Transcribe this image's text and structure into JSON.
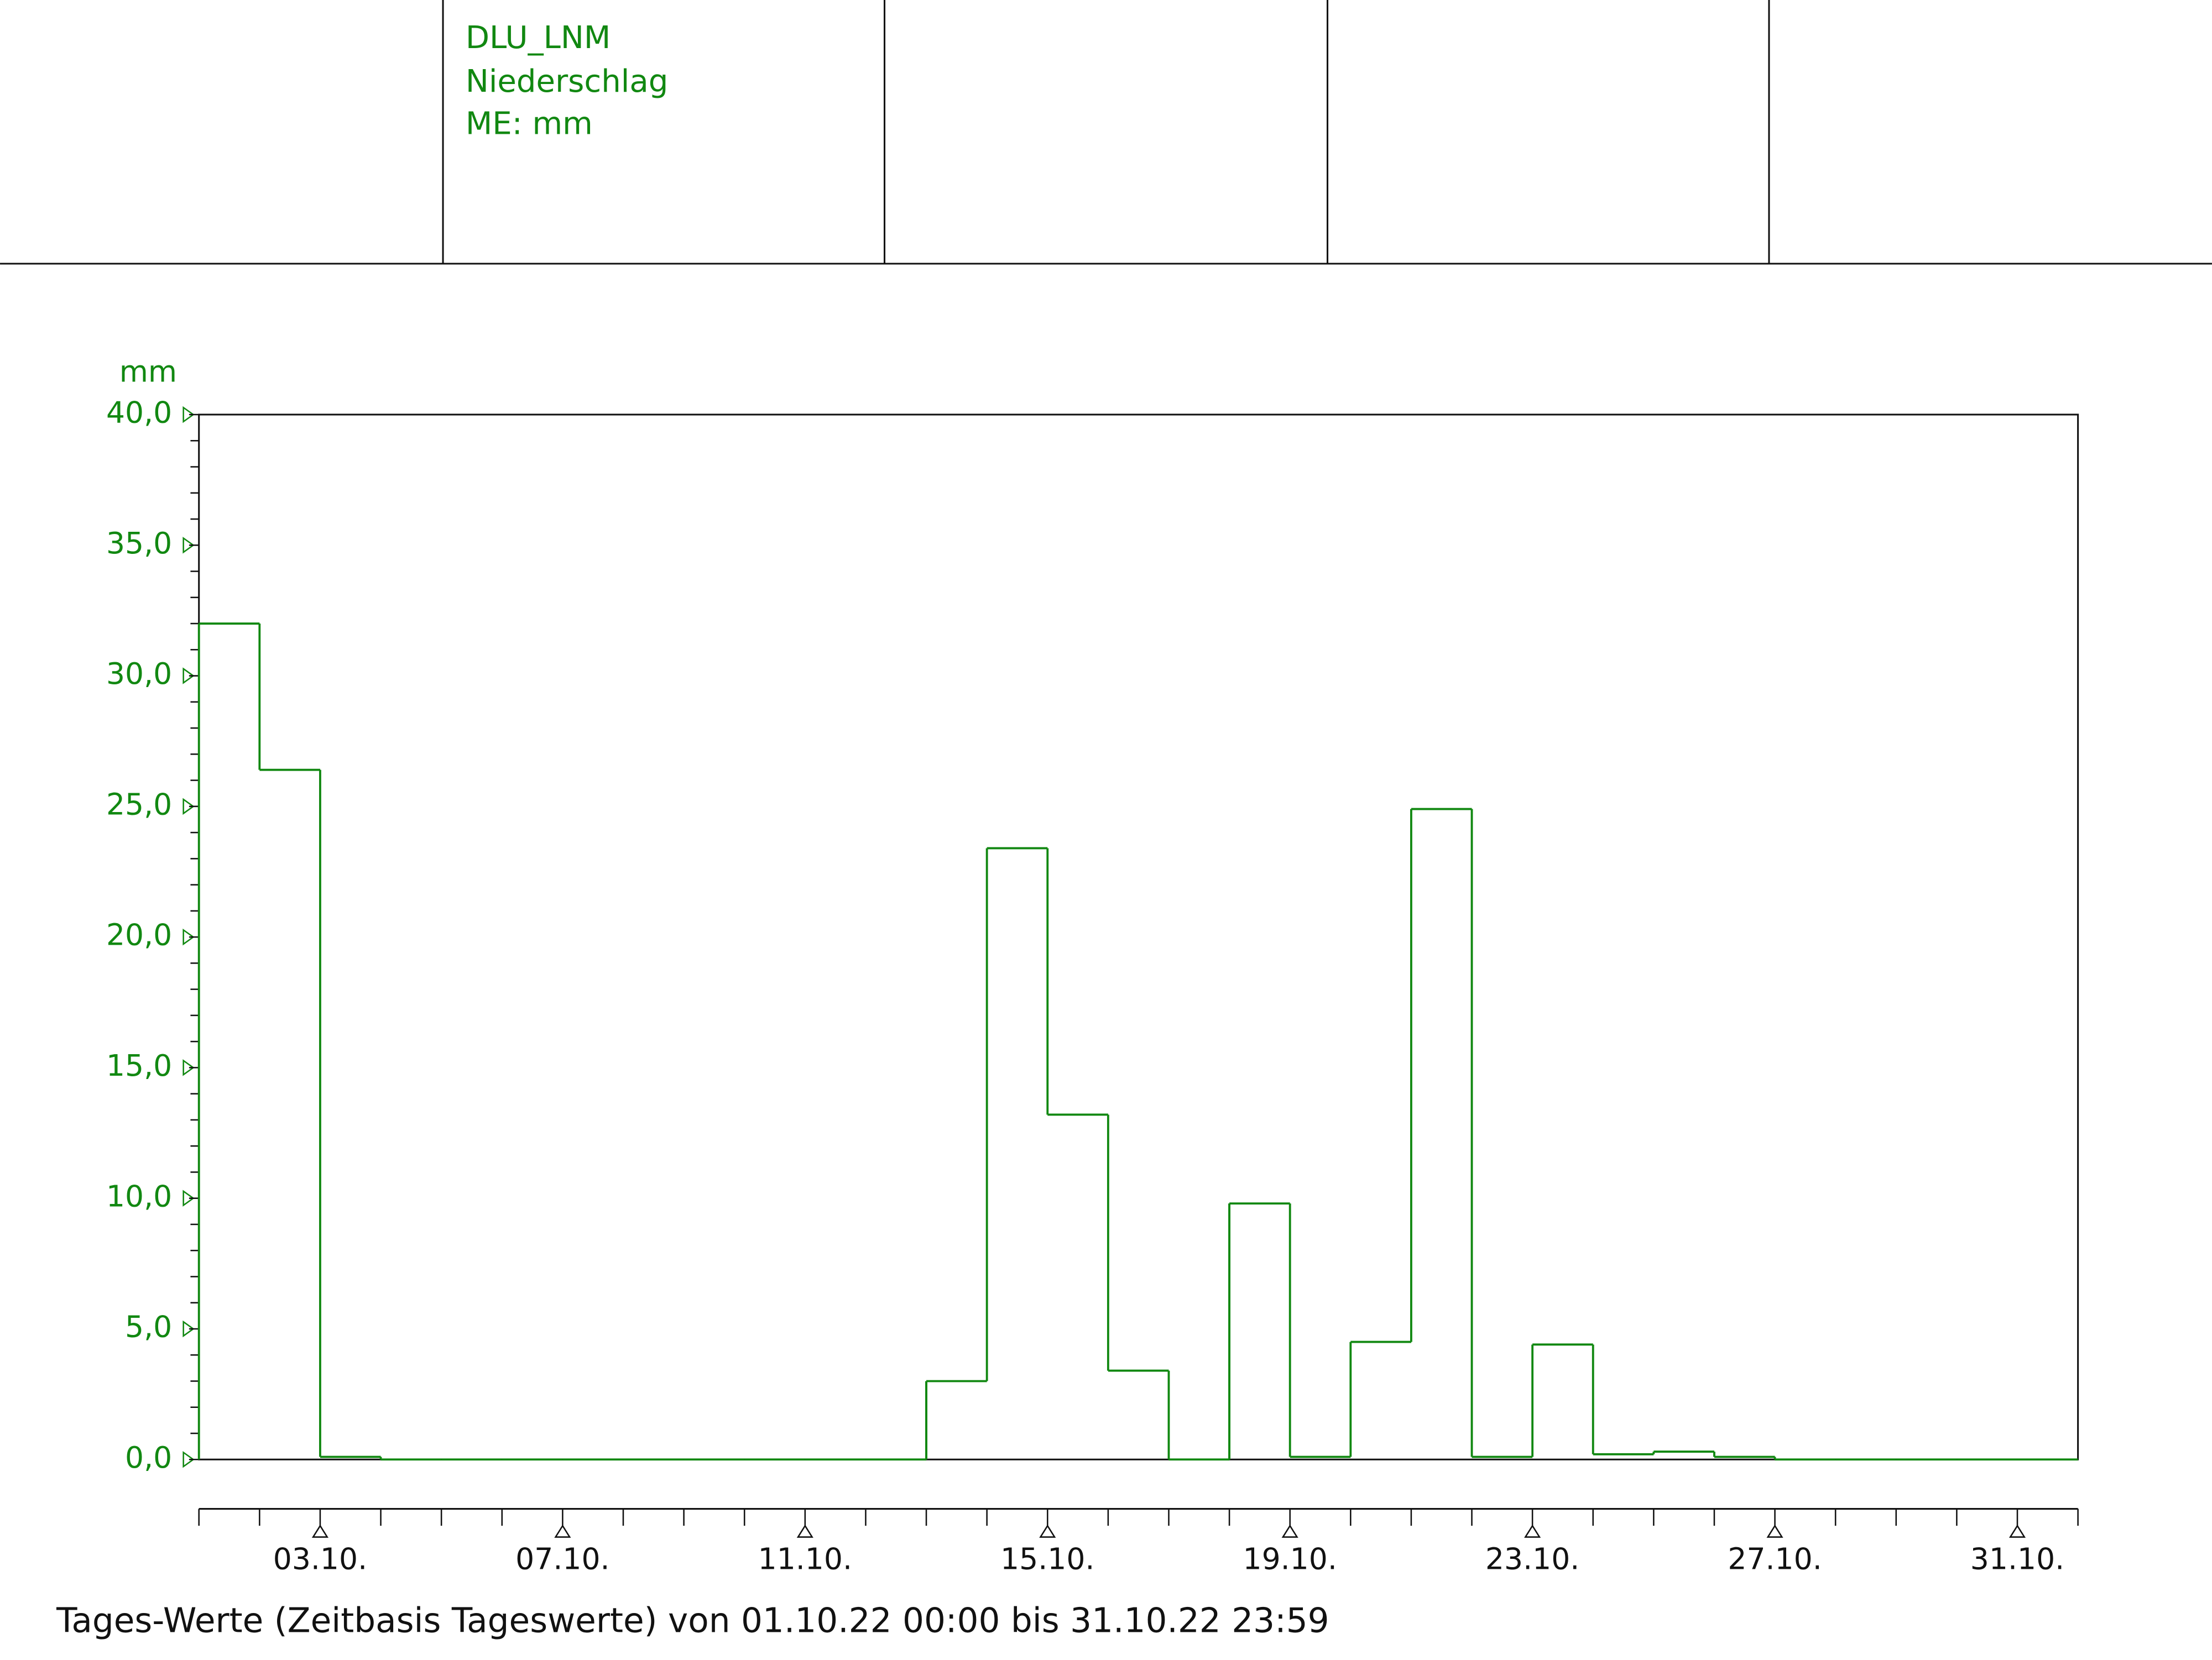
{
  "header": {
    "lines": [
      "DLU_LNM",
      "Niederschlag",
      "ME: mm"
    ]
  },
  "chart_data": {
    "type": "step",
    "y_label": "mm",
    "footer": "Tages-Werte (Zeitbasis Tageswerte) von 01.10.22 00:00 bis 31.10.22 23:59",
    "categories": [
      null,
      null,
      "03.10.",
      null,
      null,
      null,
      "07.10.",
      null,
      null,
      null,
      "11.10.",
      null,
      null,
      null,
      "15.10.",
      null,
      null,
      null,
      "19.10.",
      null,
      null,
      null,
      "23.10.",
      null,
      null,
      null,
      "27.10.",
      null,
      null,
      null,
      "31.10."
    ],
    "values": [
      32.0,
      26.4,
      0.1,
      0,
      0,
      0,
      0,
      0,
      0,
      0,
      0,
      0,
      3.0,
      23.4,
      13.2,
      3.4,
      0,
      9.8,
      0.1,
      4.5,
      24.9,
      0.1,
      4.4,
      0.2,
      0.3,
      0.1,
      0,
      0,
      0,
      0,
      0
    ],
    "color": "#118811",
    "ylim": [
      0,
      40
    ],
    "yticks": [
      {
        "value": 0,
        "label": "0,0"
      },
      {
        "value": 5,
        "label": "5,0"
      },
      {
        "value": 10,
        "label": "10,0"
      },
      {
        "value": 15,
        "label": "15,0"
      },
      {
        "value": 20,
        "label": "20,0"
      },
      {
        "value": 25,
        "label": "25,0"
      },
      {
        "value": 30,
        "label": "30,0"
      },
      {
        "value": 35,
        "label": "35,0"
      },
      {
        "value": 40,
        "label": "40,0"
      }
    ]
  }
}
